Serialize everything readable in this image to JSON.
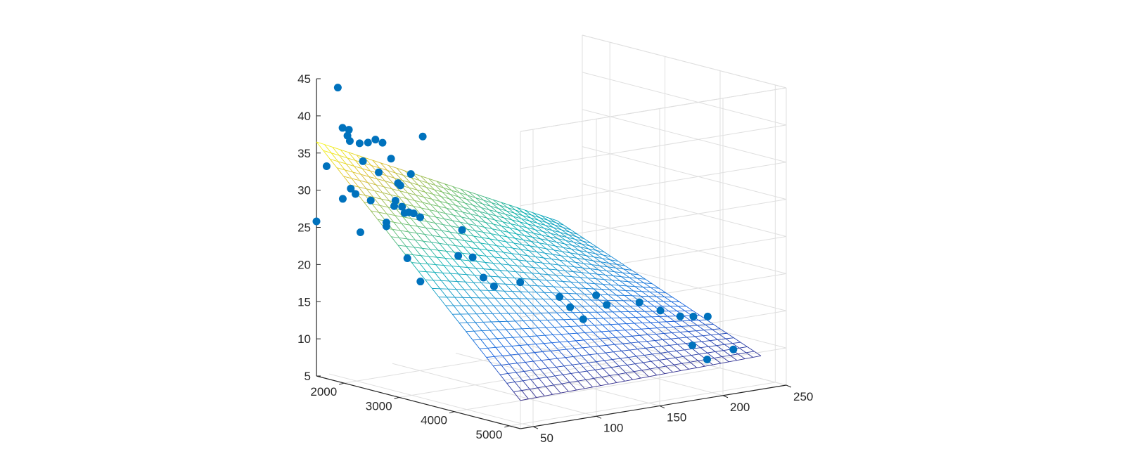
{
  "chart_data": {
    "type": "scatter",
    "x": {
      "ticks": [
        2000,
        3000,
        4000,
        5000
      ],
      "range": [
        1500,
        5200
      ]
    },
    "y": {
      "ticks": [
        50,
        100,
        150,
        200,
        250
      ],
      "range": [
        40,
        250
      ]
    },
    "z": {
      "ticks": [
        5,
        10,
        15,
        20,
        25,
        30,
        35,
        40,
        45
      ],
      "range": [
        5,
        45
      ]
    },
    "grid": true,
    "surface": {
      "type": "mesh",
      "colormap": "parula",
      "corner_values": [
        {
          "x": 1500,
          "y": 40,
          "z": 36.5
        },
        {
          "x": 5200,
          "y": 40,
          "z": 8.8
        },
        {
          "x": 1500,
          "y": 230,
          "z": 20.6
        },
        {
          "x": 5200,
          "y": 230,
          "z": 9.5
        }
      ],
      "grid_lines": 30
    },
    "points": [
      {
        "x": 1500,
        "y": 40,
        "z": 25.8
      },
      {
        "x": 1500,
        "y": 48,
        "z": 33.0
      },
      {
        "x": 1520,
        "y": 56,
        "z": 43.4
      },
      {
        "x": 1560,
        "y": 58,
        "z": 38.0
      },
      {
        "x": 1560,
        "y": 63,
        "z": 37.6
      },
      {
        "x": 1580,
        "y": 61,
        "z": 36.9
      },
      {
        "x": 1600,
        "y": 62,
        "z": 36.2
      },
      {
        "x": 1640,
        "y": 68,
        "z": 35.8
      },
      {
        "x": 1610,
        "y": 56,
        "z": 28.6
      },
      {
        "x": 1640,
        "y": 61,
        "z": 29.9
      },
      {
        "x": 1680,
        "y": 63,
        "z": 29.2
      },
      {
        "x": 1700,
        "y": 72,
        "z": 35.9
      },
      {
        "x": 1700,
        "y": 68,
        "z": 33.5
      },
      {
        "x": 1720,
        "y": 77,
        "z": 36.2
      },
      {
        "x": 1700,
        "y": 66,
        "z": 24.0
      },
      {
        "x": 1750,
        "y": 72,
        "z": 28.2
      },
      {
        "x": 1780,
        "y": 80,
        "z": 35.8
      },
      {
        "x": 1780,
        "y": 77,
        "z": 31.9
      },
      {
        "x": 1820,
        "y": 85,
        "z": 33.6
      },
      {
        "x": 1850,
        "y": 80,
        "z": 25.2
      },
      {
        "x": 1850,
        "y": 80,
        "z": 24.7
      },
      {
        "x": 1900,
        "y": 87,
        "z": 30.4
      },
      {
        "x": 1920,
        "y": 88,
        "z": 30.1
      },
      {
        "x": 1950,
        "y": 95,
        "z": 31.5
      },
      {
        "x": 1900,
        "y": 85,
        "z": 28.1
      },
      {
        "x": 1900,
        "y": 84,
        "z": 27.4
      },
      {
        "x": 1950,
        "y": 88,
        "z": 27.3
      },
      {
        "x": 1950,
        "y": 90,
        "z": 26.4
      },
      {
        "x": 1980,
        "y": 92,
        "z": 26.5
      },
      {
        "x": 2000,
        "y": 95,
        "z": 26.3
      },
      {
        "x": 2050,
        "y": 100,
        "z": 36.6
      },
      {
        "x": 2050,
        "y": 98,
        "z": 25.8
      },
      {
        "x": 2000,
        "y": 90,
        "z": 20.4
      },
      {
        "x": 2100,
        "y": 96,
        "z": 17.3
      },
      {
        "x": 2350,
        "y": 118,
        "z": 24.1
      },
      {
        "x": 2350,
        "y": 115,
        "z": 20.7
      },
      {
        "x": 2450,
        "y": 122,
        "z": 20.5
      },
      {
        "x": 2600,
        "y": 124,
        "z": 18.0
      },
      {
        "x": 2700,
        "y": 128,
        "z": 16.9
      },
      {
        "x": 2900,
        "y": 140,
        "z": 17.5
      },
      {
        "x": 3200,
        "y": 158,
        "z": 15.6
      },
      {
        "x": 3300,
        "y": 162,
        "z": 14.3
      },
      {
        "x": 3400,
        "y": 168,
        "z": 12.7
      },
      {
        "x": 3450,
        "y": 176,
        "z": 15.8
      },
      {
        "x": 3550,
        "y": 180,
        "z": 14.6
      },
      {
        "x": 3800,
        "y": 195,
        "z": 15.0
      },
      {
        "x": 3950,
        "y": 205,
        "z": 13.9
      },
      {
        "x": 4150,
        "y": 212,
        "z": 13.3
      },
      {
        "x": 4250,
        "y": 218,
        "z": 13.3
      },
      {
        "x": 4350,
        "y": 225,
        "z": 13.3
      },
      {
        "x": 4300,
        "y": 215,
        "z": 9.6
      },
      {
        "x": 4500,
        "y": 218,
        "z": 8.0
      },
      {
        "x": 4700,
        "y": 230,
        "z": 9.4
      }
    ]
  },
  "colors": {
    "marker": "#0072BD",
    "axis": "#262626",
    "grid": "#dfdfdf"
  }
}
